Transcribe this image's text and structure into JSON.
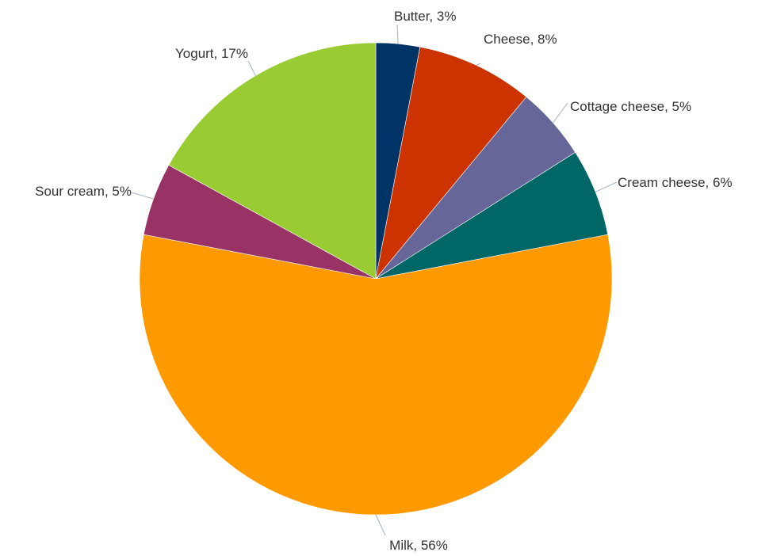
{
  "chart_data": {
    "type": "pie",
    "title": "",
    "start": "12 o'clock",
    "direction": "clockwise",
    "slices": [
      {
        "name": "Butter",
        "value": 3,
        "label": "Butter, 3%",
        "color": "#003366"
      },
      {
        "name": "Cheese",
        "value": 8,
        "label": "Cheese, 8%",
        "color": "#cc3300"
      },
      {
        "name": "Cottage cheese",
        "value": 5,
        "label": "Cottage cheese, 5%",
        "color": "#666699"
      },
      {
        "name": "Cream cheese",
        "value": 6,
        "label": "Cream cheese, 6%",
        "color": "#006666"
      },
      {
        "name": "Milk",
        "value": 56,
        "label": "Milk, 56%",
        "color": "#ff9900"
      },
      {
        "name": "Sour cream",
        "value": 5,
        "label": "Sour cream, 5%",
        "color": "#993366"
      },
      {
        "name": "Yogurt",
        "value": 17,
        "label": "Yogurt, 17%",
        "color": "#99cc33"
      }
    ]
  }
}
